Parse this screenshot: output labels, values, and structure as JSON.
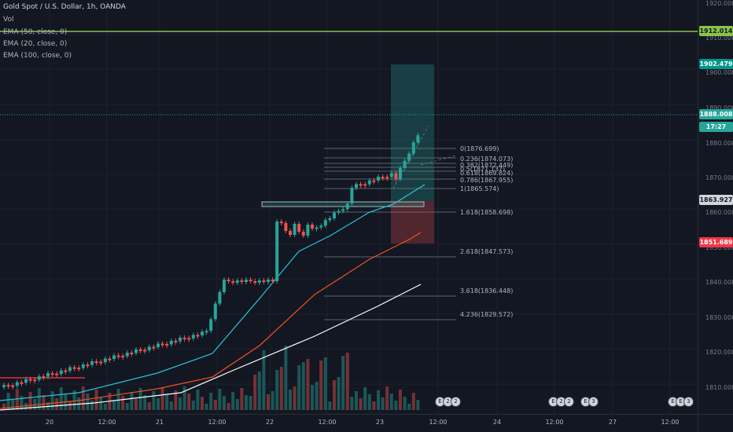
{
  "legend": {
    "title": "Gold Spot / U.S. Dollar, 1h, OANDA",
    "vol": "Vol",
    "ema50": "EMA (50, close, 0)",
    "ema20": "EMA (20, close, 0)",
    "ema100": "EMA (100, close, 0)"
  },
  "price_scale": {
    "ticks": [
      "1920.000",
      "1910.000",
      "1900.000",
      "1890.000",
      "1880.000",
      "1870.000",
      "1860.000",
      "1850.000",
      "1840.000",
      "1830.000",
      "1820.000",
      "1810.000"
    ],
    "labels": {
      "green_line": "1912.014",
      "target": "1902.479",
      "current": "1888.008",
      "countdown": "17:27",
      "entry": "1863.927",
      "stop": "1851.689"
    }
  },
  "time_scale": [
    "20",
    "12:00",
    "21",
    "12:00",
    "22",
    "12:00",
    "23",
    "12:00",
    "24",
    "12:00",
    "27",
    "12:00"
  ],
  "fib_levels": [
    "0(1876.699)",
    "0.236(1874.073)",
    "0.382(1872.449)",
    "0.5(1871.137)",
    "0.618(1869.824)",
    "0.786(1867.955)",
    "1(1865.574)",
    "1.618(1858.698)",
    "2.618(1847.573)",
    "3.618(1836.448)",
    "4.236(1829.572)"
  ],
  "event_markers": [
    {
      "count": "2",
      "icons": [
        "E",
        "2",
        "2"
      ]
    },
    {
      "count": "2",
      "icons": [
        "E",
        "2",
        "2"
      ]
    },
    {
      "count": "3",
      "icons": [
        "E",
        "3"
      ]
    },
    {
      "count": "3",
      "icons": [
        "E",
        "E",
        "3"
      ]
    }
  ],
  "colors": {
    "background": "#131722",
    "up": "#26a69a",
    "down": "#ef5350",
    "ema20": "#26c6da",
    "ema50": "#f4511e",
    "ema100": "#ffffff",
    "green_line": "#8bc34a"
  }
}
